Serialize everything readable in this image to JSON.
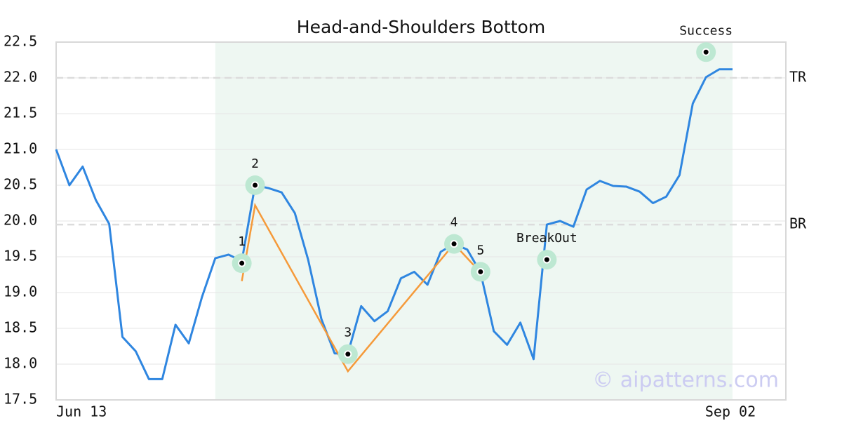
{
  "chart_data": {
    "type": "line",
    "title": "Head-and-Shoulders Bottom",
    "categories": [
      "Jun 13",
      null,
      null,
      null,
      null,
      null,
      null,
      null,
      null,
      null,
      null,
      null,
      null,
      null,
      null,
      null,
      null,
      null,
      null,
      null,
      null,
      null,
      null,
      null,
      null,
      null,
      null,
      null,
      null,
      null,
      null,
      null,
      null,
      null,
      null,
      null,
      null,
      null,
      null,
      null,
      null,
      null,
      null,
      null,
      null,
      null,
      null,
      null,
      null,
      null,
      null,
      "Sep 02"
    ],
    "series": [
      {
        "color": "#2f86e0",
        "values": [
          21.0,
          20.5,
          20.76,
          20.29,
          19.96,
          18.38,
          18.18,
          17.79,
          17.79,
          18.55,
          18.29,
          18.94,
          19.48,
          19.53,
          19.44,
          20.5,
          20.46,
          20.4,
          20.11,
          19.46,
          18.63,
          18.15,
          18.15,
          18.81,
          18.6,
          18.74,
          19.2,
          19.29,
          19.11,
          19.57,
          19.68,
          19.6,
          19.28,
          18.46,
          18.27,
          18.58,
          18.07,
          19.95,
          20.0,
          19.92,
          20.44,
          20.56,
          20.49,
          20.48,
          20.41,
          20.25,
          20.34,
          20.64,
          21.64,
          22.01,
          22.12,
          22.12
        ]
      }
    ],
    "pattern": {
      "color": "#f59a3a",
      "points": [
        {
          "index": 14,
          "value": 19.16
        },
        {
          "index": 15,
          "value": 20.22
        },
        {
          "index": 22,
          "value": 17.9
        },
        {
          "index": 30,
          "value": 19.68
        },
        {
          "index": 32,
          "value": 19.28
        }
      ]
    },
    "markers": [
      {
        "label": "1",
        "index": 14,
        "value": 19.41
      },
      {
        "label": "2",
        "index": 15,
        "value": 20.5
      },
      {
        "label": "3",
        "index": 22,
        "value": 18.14
      },
      {
        "label": "4",
        "index": 30,
        "value": 19.68
      },
      {
        "label": "5",
        "index": 32,
        "value": 19.29
      },
      {
        "label": "BreakOut",
        "index": 37,
        "value": 19.46
      },
      {
        "label": "Success",
        "index": 49,
        "value": 22.36
      }
    ],
    "hlines": [
      {
        "label": "TR",
        "value": 22.0
      },
      {
        "label": "BR",
        "value": 19.95
      }
    ],
    "shaded_range": [
      12,
      51
    ],
    "ylim": [
      17.5,
      22.5
    ],
    "yticks": [
      17.5,
      {
        "value": 18,
        "label": "18.0"
      },
      18.5,
      {
        "value": 19,
        "label": "19.0"
      },
      19.5,
      {
        "value": 20,
        "label": "20.0"
      },
      20.5,
      {
        "value": 21,
        "label": "21.0"
      },
      21.5,
      {
        "value": 22,
        "label": "22.0"
      },
      22.5
    ],
    "grid": true,
    "watermark": "© aipatterns.com"
  }
}
